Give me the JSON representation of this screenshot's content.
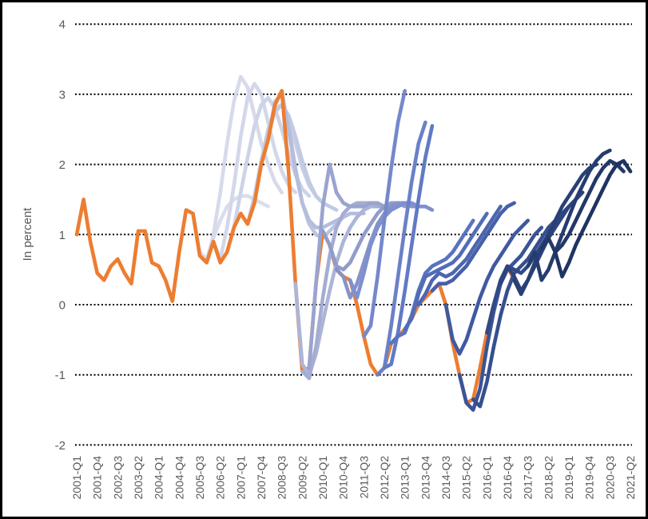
{
  "figure": {
    "ylabel": "In percent",
    "background": "#ffffff",
    "frame_border_color": "#000000"
  },
  "chart_data": {
    "type": "line",
    "title": "",
    "xlabel": "",
    "ylabel": "In percent",
    "ylim": [
      -2,
      4
    ],
    "yticks": [
      4,
      3,
      2,
      1,
      0,
      -1,
      -2
    ],
    "grid": "horizontal-dotted",
    "legend": "none",
    "x_unit": "quarter",
    "x_start": "2001-Q1",
    "x_end": "2021-Q2",
    "xtick_step_quarters": 3,
    "xtick_labels": [
      "2001-Q1",
      "2001-Q4",
      "2002-Q3",
      "2003-Q2",
      "2004-Q1",
      "2004-Q4",
      "2005-Q3",
      "2006-Q2",
      "2007-Q1",
      "2007-Q4",
      "2008-Q3",
      "2009-Q2",
      "2010-Q1",
      "2010-Q4",
      "2011-Q3",
      "2012-Q2",
      "2013-Q1",
      "2013-Q4",
      "2014-Q3",
      "2015-Q2",
      "2016-Q1",
      "2016-Q4",
      "2017-Q3",
      "2018-Q2",
      "2019-Q1",
      "2019-Q4",
      "2020-Q3",
      "2021-Q2"
    ],
    "style": {
      "grid_color": "#000000",
      "axis_text_color": "#595959",
      "actual_color": "#ED7D31",
      "forecast_color_oldest": "#dadded",
      "forecast_color_newest": "#1f3462",
      "line_width": 4.6
    },
    "actual": {
      "name": "actual",
      "color": "#ED7D31",
      "start": "2001-Q1",
      "start_index": 0,
      "values": [
        1.0,
        1.5,
        0.9,
        0.45,
        0.35,
        0.55,
        0.65,
        0.45,
        0.3,
        1.05,
        1.05,
        0.6,
        0.55,
        0.35,
        0.05,
        0.75,
        1.35,
        1.3,
        0.7,
        0.6,
        0.9,
        0.6,
        0.75,
        1.1,
        1.3,
        1.15,
        1.45,
        2.0,
        2.35,
        2.85,
        3.05,
        1.9,
        0.3,
        -0.95,
        -0.9,
        0.3,
        1.05,
        0.85,
        0.5,
        0.4,
        0.35,
        0.0,
        -0.45,
        -0.85,
        -1.0,
        -0.9,
        -0.55,
        -0.45,
        -0.35,
        -0.2,
        0.0,
        0.1,
        0.2,
        0.3,
        0.0,
        -0.55,
        -1.0,
        -1.4,
        -1.35,
        -0.9,
        -0.4,
        0.0,
        0.3,
        0.55,
        0.35,
        0.15
      ]
    },
    "forecasts": [
      {
        "name": "vintage-2005-Q1",
        "start": "2005-Q1",
        "start_index": 16,
        "color": "#dadded",
        "values": [
          1.35,
          1.3,
          0.75,
          0.65,
          0.95,
          1.2,
          1.4,
          1.5,
          1.55,
          1.55,
          1.5,
          1.45,
          1.4
        ]
      },
      {
        "name": "vintage-2005-Q3",
        "start": "2005-Q3",
        "start_index": 18,
        "color": "#d6daeb",
        "values": [
          0.7,
          0.6,
          1.0,
          1.6,
          2.3,
          2.9,
          3.25,
          3.1,
          2.7,
          2.3,
          2.0,
          1.75,
          1.6
        ]
      },
      {
        "name": "vintage-2006-Q1",
        "start": "2006-Q1",
        "start_index": 20,
        "color": "#d2d7ea",
        "values": [
          0.9,
          0.65,
          1.1,
          1.7,
          2.4,
          2.95,
          3.15,
          3.0,
          2.6,
          2.2,
          1.9,
          1.7,
          1.6
        ]
      },
      {
        "name": "vintage-2006-Q3",
        "start": "2006-Q3",
        "start_index": 22,
        "color": "#cdd3e8",
        "values": [
          0.75,
          1.1,
          1.6,
          2.1,
          2.55,
          2.85,
          2.95,
          2.8,
          2.5,
          2.15,
          1.85,
          1.65,
          1.55
        ]
      },
      {
        "name": "vintage-2007-Q1",
        "start": "2007-Q1",
        "start_index": 24,
        "color": "#c8cfe6",
        "values": [
          1.3,
          1.15,
          1.55,
          2.05,
          2.5,
          2.8,
          2.85,
          2.65,
          2.3,
          1.95,
          1.7,
          1.55,
          1.45
        ]
      },
      {
        "name": "vintage-2007-Q3",
        "start": "2007-Q3",
        "start_index": 26,
        "color": "#c2cae3",
        "values": [
          1.45,
          2.0,
          2.45,
          2.75,
          2.85,
          2.7,
          2.4,
          2.05,
          1.75,
          1.55,
          1.45,
          1.4,
          1.35
        ]
      },
      {
        "name": "vintage-2008-Q1",
        "start": "2008-Q1",
        "start_index": 28,
        "color": "#bcc4e0",
        "values": [
          2.35,
          2.9,
          3.0,
          2.55,
          1.95,
          1.45,
          1.15,
          1.0,
          0.95,
          1.05,
          1.15,
          1.25,
          1.3
        ]
      },
      {
        "name": "vintage-2008-Q3",
        "start": "2008-Q3",
        "start_index": 30,
        "color": "#b4bddc",
        "values": [
          3.05,
          2.5,
          1.9,
          1.45,
          1.2,
          1.1,
          1.1,
          1.15,
          1.2,
          1.25,
          1.3,
          1.3,
          1.3
        ]
      },
      {
        "name": "vintage-2009-Q1",
        "start": "2009-Q1",
        "start_index": 32,
        "color": "#acb5d8",
        "values": [
          0.3,
          -0.85,
          -1.0,
          -0.7,
          -0.25,
          0.2,
          0.6,
          0.9,
          1.1,
          1.25,
          1.35,
          1.4,
          1.4
        ]
      },
      {
        "name": "vintage-2009-Q2",
        "start": "2009-Q2",
        "start_index": 33,
        "color": "#a3add4",
        "values": [
          -0.95,
          -1.05,
          -0.6,
          0.1,
          0.7,
          1.1,
          1.3,
          1.4,
          1.45,
          1.45,
          1.45,
          1.4,
          1.4
        ]
      },
      {
        "name": "vintage-2009-Q3",
        "start": "2009-Q3",
        "start_index": 34,
        "color": "#9aa4d0",
        "values": [
          -0.9,
          0.3,
          1.4,
          2.0,
          1.6,
          1.45,
          1.4,
          1.4,
          1.4,
          1.45,
          1.45,
          1.4,
          1.4
        ]
      },
      {
        "name": "vintage-2010-Q1",
        "start": "2010-Q1",
        "start_index": 36,
        "color": "#919ccb",
        "values": [
          1.05,
          0.85,
          0.55,
          0.5,
          0.6,
          0.8,
          1.0,
          1.15,
          1.3,
          1.4,
          1.45,
          1.45,
          1.4
        ]
      },
      {
        "name": "vintage-2010-Q3",
        "start": "2010-Q3",
        "start_index": 38,
        "color": "#8793c7",
        "values": [
          0.5,
          0.4,
          0.1,
          0.3,
          0.6,
          0.9,
          1.15,
          1.3,
          1.4,
          1.45,
          1.45,
          1.4,
          1.4
        ]
      },
      {
        "name": "vintage-2011-Q1",
        "start": "2011-Q1",
        "start_index": 40,
        "color": "#7e90ce",
        "values": [
          0.35,
          0.1,
          0.45,
          0.85,
          1.1,
          1.25,
          1.35,
          1.4,
          1.45,
          1.45,
          1.4,
          1.4,
          1.35
        ]
      },
      {
        "name": "vintage-2011-Q3",
        "start": "2011-Q3",
        "start_index": 42,
        "color": "#7489cb",
        "values": [
          -0.45,
          -0.3,
          0.4,
          1.2,
          1.95,
          2.6,
          3.05
        ]
      },
      {
        "name": "vintage-2012-Q1",
        "start": "2012-Q1",
        "start_index": 44,
        "color": "#6a81c8",
        "values": [
          -1.0,
          -0.9,
          -0.3,
          0.4,
          1.1,
          1.75,
          2.3,
          2.6
        ]
      },
      {
        "name": "vintage-2012-Q2",
        "start": "2012-Q2",
        "start_index": 45,
        "color": "#617ac4",
        "values": [
          -0.9,
          -0.85,
          -0.4,
          0.2,
          0.85,
          1.5,
          2.1,
          2.55
        ]
      },
      {
        "name": "vintage-2012-Q3",
        "start": "2012-Q3",
        "start_index": 46,
        "color": "#5973bf",
        "values": [
          -0.55,
          -0.45,
          -0.4,
          -0.15,
          0.2,
          0.45,
          0.55,
          0.6,
          0.65,
          0.75,
          0.9,
          1.05,
          1.2
        ]
      },
      {
        "name": "vintage-2013-Q1",
        "start": "2013-Q1",
        "start_index": 48,
        "color": "#526cb8",
        "values": [
          -0.35,
          -0.2,
          0.15,
          0.4,
          0.45,
          0.5,
          0.55,
          0.6,
          0.7,
          0.85,
          1.0,
          1.15,
          1.3
        ]
      },
      {
        "name": "vintage-2013-Q3",
        "start": "2013-Q3",
        "start_index": 50,
        "color": "#4c66b1",
        "values": [
          0.0,
          0.15,
          0.35,
          0.45,
          0.4,
          0.45,
          0.55,
          0.65,
          0.8,
          0.95,
          1.1,
          1.25,
          1.4
        ]
      },
      {
        "name": "vintage-2014-Q1",
        "start": "2014-Q1",
        "start_index": 52,
        "color": "#4660a9",
        "values": [
          0.2,
          0.3,
          0.3,
          0.35,
          0.45,
          0.55,
          0.7,
          0.85,
          1.0,
          1.15,
          1.3,
          1.4,
          1.45
        ]
      },
      {
        "name": "vintage-2014-Q3",
        "start": "2014-Q3",
        "start_index": 54,
        "color": "#405aa0",
        "values": [
          0.0,
          -0.5,
          -0.7,
          -0.5,
          -0.2,
          0.1,
          0.35,
          0.55,
          0.7,
          0.85,
          1.0,
          1.1,
          1.2
        ]
      },
      {
        "name": "vintage-2015-Q1",
        "start": "2015-Q1",
        "start_index": 56,
        "color": "#3b5497",
        "values": [
          -1.0,
          -1.4,
          -1.5,
          -1.2,
          -0.6,
          -0.1,
          0.3,
          0.5,
          0.6,
          0.7,
          0.85,
          1.0,
          1.1
        ]
      },
      {
        "name": "vintage-2015-Q3",
        "start": "2015-Q3",
        "start_index": 58,
        "color": "#364f8e",
        "values": [
          -1.35,
          -1.45,
          -1.1,
          -0.6,
          -0.15,
          0.2,
          0.45,
          0.55,
          0.65,
          0.8,
          0.95,
          1.1,
          1.2
        ]
      },
      {
        "name": "vintage-2016-Q1",
        "start": "2016-Q1",
        "start_index": 60,
        "color": "#314a86",
        "values": [
          -0.4,
          0.0,
          0.35,
          0.55,
          0.5,
          0.45,
          0.55,
          0.7,
          0.85,
          1.0,
          1.15,
          1.3,
          1.4
        ]
      },
      {
        "name": "vintage-2016-Q3",
        "start": "2016-Q3",
        "start_index": 62,
        "color": "#2d457e",
        "values": [
          0.3,
          0.55,
          0.4,
          0.2,
          0.35,
          0.55,
          0.75,
          0.95,
          1.1,
          1.25,
          1.4,
          1.5,
          1.6
        ]
      },
      {
        "name": "vintage-2017-Q1",
        "start": "2017-Q1",
        "start_index": 64,
        "color": "#294076",
        "values": [
          0.35,
          0.15,
          0.35,
          0.6,
          0.8,
          1.0,
          1.2,
          1.4,
          1.55,
          1.7,
          1.85,
          1.95,
          2.0
        ]
      },
      {
        "name": "vintage-2017-Q3",
        "start": "2017-Q3",
        "start_index": 66,
        "color": "#263c6f",
        "values": [
          0.55,
          0.75,
          0.35,
          0.5,
          0.75,
          1.0,
          1.25,
          1.5,
          1.7,
          1.9,
          2.05,
          2.15,
          2.2
        ]
      },
      {
        "name": "vintage-2018-Q1",
        "start": "2018-Q1",
        "start_index": 68,
        "color": "#233868",
        "values": [
          0.8,
          0.95,
          0.75,
          0.85,
          1.0,
          1.2,
          1.4,
          1.6,
          1.8,
          1.95,
          2.05,
          2.0,
          1.9
        ]
      },
      {
        "name": "vintage-2018-Q3",
        "start": "2018-Q3",
        "start_index": 70,
        "color": "#1f3462",
        "values": [
          0.75,
          0.4,
          0.6,
          0.85,
          1.05,
          1.25,
          1.45,
          1.65,
          1.85,
          2.0,
          2.05,
          1.9
        ]
      }
    ]
  }
}
